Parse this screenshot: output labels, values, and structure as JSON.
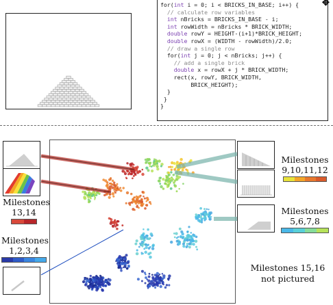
{
  "code": {
    "lines": [
      [
        {
          "t": "for(",
          "c": "tx"
        },
        {
          "t": "int",
          "c": "kw"
        },
        {
          "t": " i = 0; i < BRICKS_IN_BASE; i++) {",
          "c": "tx"
        }
      ],
      [
        {
          "t": "  // calculate row variables",
          "c": "cm"
        }
      ],
      [
        {
          "t": "  ",
          "c": "tx"
        },
        {
          "t": "int",
          "c": "kw"
        },
        {
          "t": " nBricks = BRICKS_IN_BASE - i;",
          "c": "tx"
        }
      ],
      [
        {
          "t": "  ",
          "c": "tx"
        },
        {
          "t": "int",
          "c": "kw"
        },
        {
          "t": " rowWidth = nBricks * BRICK_WIDTH;",
          "c": "tx"
        }
      ],
      [
        {
          "t": "  ",
          "c": "tx"
        },
        {
          "t": "double",
          "c": "kw"
        },
        {
          "t": " rowY = HEIGHT-(i+1)*BRICK_HEIGHT;",
          "c": "tx"
        }
      ],
      [
        {
          "t": "  ",
          "c": "tx"
        },
        {
          "t": "double",
          "c": "kw"
        },
        {
          "t": " rowX = (WIDTH - rowWidth)/2.0;",
          "c": "tx"
        }
      ],
      [
        {
          "t": "  // draw a single row",
          "c": "cm"
        }
      ],
      [
        {
          "t": "  for(",
          "c": "tx"
        },
        {
          "t": "int",
          "c": "kw"
        },
        {
          "t": " j = 0; j < nBricks; j++) {",
          "c": "tx"
        }
      ],
      [
        {
          "t": "    // add a single brick",
          "c": "cm"
        }
      ],
      [
        {
          "t": "    ",
          "c": "tx"
        },
        {
          "t": "double",
          "c": "kw"
        },
        {
          "t": " x = rowX + j * BRICK_WIDTH;",
          "c": "tx"
        }
      ],
      [
        {
          "t": "    rect(x, rowY, BRICK_WIDTH,",
          "c": "tx"
        }
      ],
      [
        {
          "t": "         BRICK_HEIGHT);",
          "c": "tx"
        }
      ],
      [
        {
          "t": "  }",
          "c": "tx"
        }
      ],
      [
        {
          "t": " }",
          "c": "tx"
        }
      ],
      [
        {
          "t": "}",
          "c": "tx"
        }
      ]
    ]
  },
  "milestones": {
    "m9_12": {
      "title": "Milestones",
      "numbers": "9,10,11,12",
      "colors": [
        "#e8e23a",
        "#f3a52a",
        "#e8792e",
        "#d95b2b"
      ]
    },
    "m13_14": {
      "title": "Milestones",
      "numbers": "13,14",
      "colors": [
        "#d8493a",
        "#b8262a"
      ]
    },
    "m1_4": {
      "title": "Milestones",
      "numbers": "1,2,3,4",
      "colors": [
        "#2a3aa8",
        "#2f5cc8",
        "#3a86e0",
        "#45a9ea"
      ]
    },
    "m5_8": {
      "title": "Milestones",
      "numbers": "5,6,7,8",
      "colors": [
        "#4ab8e8",
        "#58d0d8",
        "#86dc9a",
        "#b6e25a"
      ]
    },
    "not_pictured": {
      "line1": "Milestones 15,16",
      "line2": "not pictured"
    }
  },
  "colors": {
    "accent_blue": "#1f4fbf",
    "line_red": "#b8362f",
    "line_teal": "#7fb7b0"
  },
  "icons": {
    "cursor": "✥"
  }
}
